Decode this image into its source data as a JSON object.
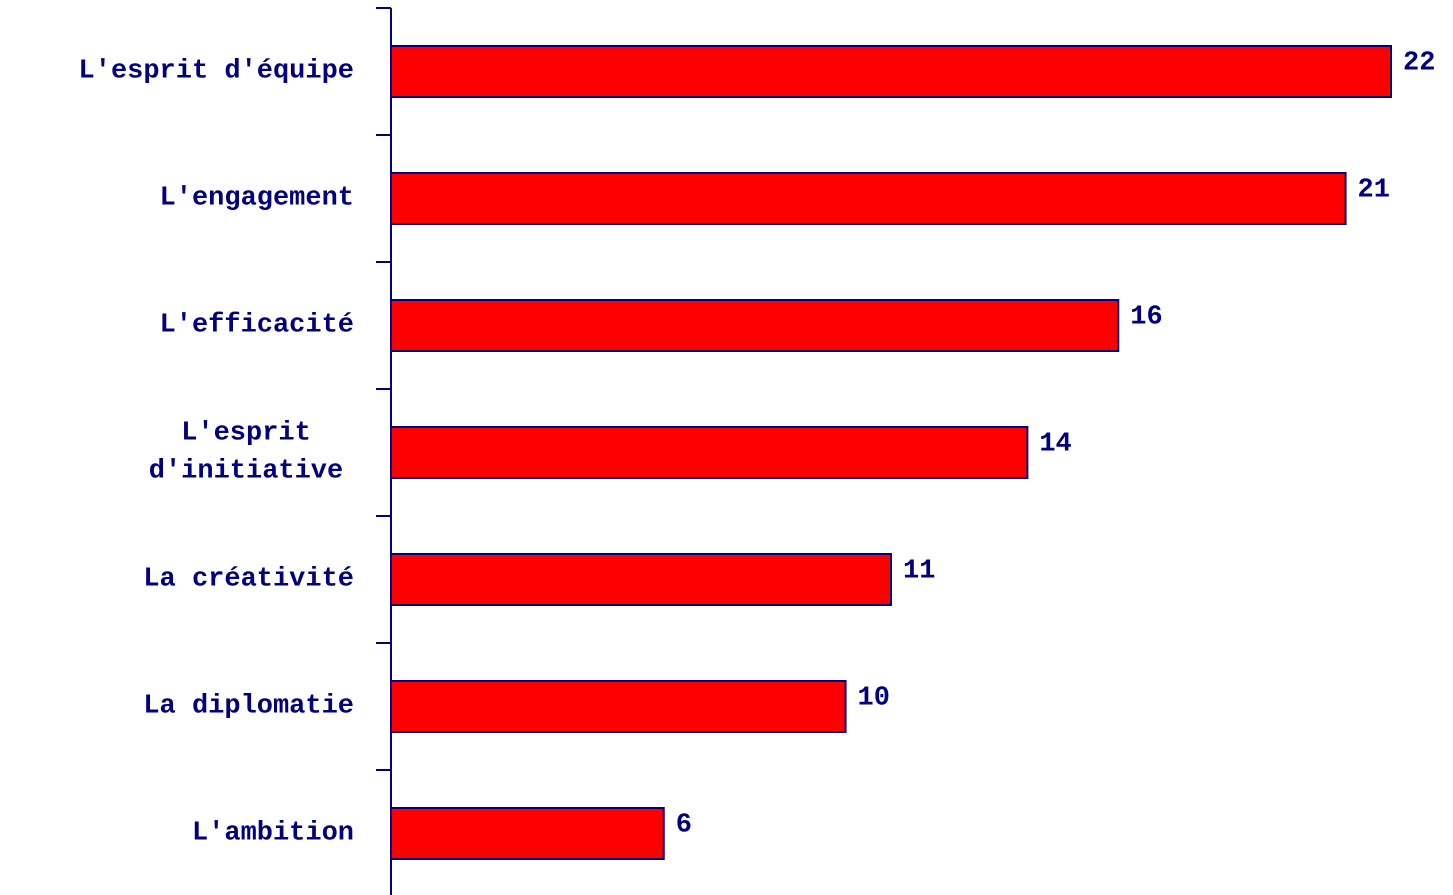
{
  "chart_data": {
    "type": "bar",
    "orientation": "horizontal",
    "categories": [
      [
        "L'esprit d'équipe"
      ],
      [
        "L'engagement"
      ],
      [
        "L'efficacité"
      ],
      [
        "L'esprit",
        "d'initiative"
      ],
      [
        "La créativité"
      ],
      [
        "La diplomatie"
      ],
      [
        "L'ambition"
      ]
    ],
    "values": [
      22,
      21,
      16,
      14,
      11,
      10,
      6
    ],
    "value_labels": [
      "22",
      "21",
      "16",
      "14",
      "11",
      "10",
      "6"
    ],
    "xlim": [
      0,
      22
    ],
    "grid": false,
    "legend": false,
    "title": "",
    "xlabel": "",
    "ylabel": ""
  },
  "colors": {
    "bar_fill": "#ff0000",
    "bar_stroke": "#000080",
    "axis": "#000080",
    "text": "#000080"
  }
}
